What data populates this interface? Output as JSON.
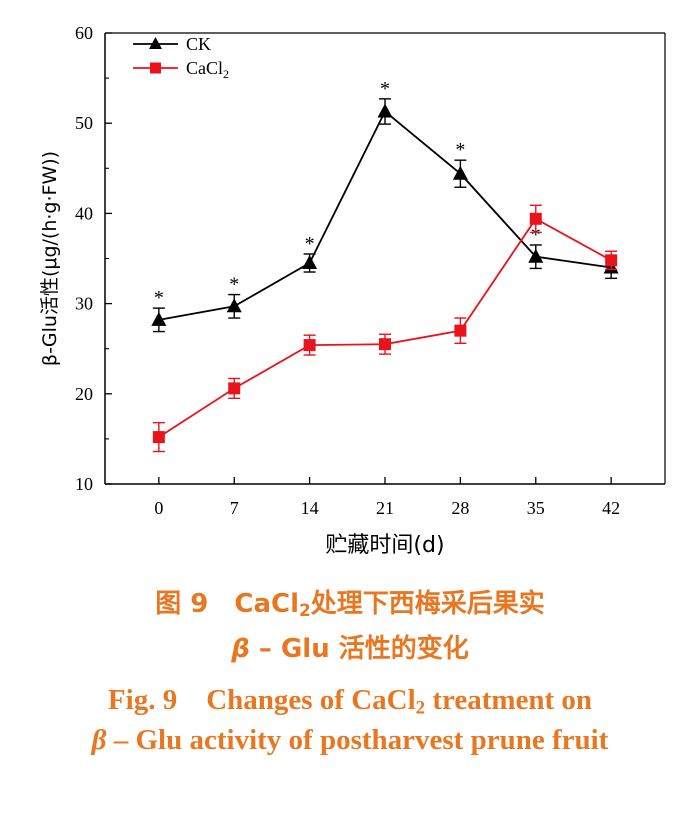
{
  "chart_data": {
    "type": "line",
    "x": [
      0,
      7,
      14,
      21,
      28,
      35,
      42
    ],
    "xlabel": "贮藏时间(d)",
    "ylabel": "β-Glu活性(μg/(h·g·FW))",
    "xlim": [
      -5,
      47
    ],
    "ylim": [
      10,
      60
    ],
    "yticks": [
      10,
      20,
      30,
      40,
      50,
      60
    ],
    "legend_position": "top-left",
    "significance_marker": "*",
    "series": [
      {
        "name": "CK",
        "color": "#000000",
        "marker": "triangle",
        "values": [
          28.2,
          29.7,
          34.5,
          51.3,
          44.4,
          35.2,
          34.0
        ],
        "errors": [
          1.3,
          1.3,
          1.0,
          1.4,
          1.5,
          1.3,
          1.2
        ],
        "significant": [
          true,
          true,
          true,
          true,
          true,
          true,
          false
        ]
      },
      {
        "name": "CaCl2",
        "name_main": "CaCl",
        "name_sub": "2",
        "color": "#e8131b",
        "marker": "square",
        "values": [
          15.2,
          20.6,
          25.4,
          25.5,
          27.0,
          39.4,
          34.8
        ],
        "errors": [
          1.6,
          1.1,
          1.1,
          1.1,
          1.4,
          1.5,
          1.0
        ],
        "significant": [
          false,
          false,
          false,
          false,
          false,
          false,
          false
        ]
      }
    ]
  },
  "caption": {
    "zh_line1_prefix": "图 9　CaCl",
    "zh_line1_sub": "2",
    "zh_line1_suffix": "处理下西梅采后果实",
    "zh_line2_beta": "β",
    "zh_line2_rest": " – Glu 活性的变化",
    "en_line1_prefix": "Fig. 9　Changes of CaCl",
    "en_line1_sub": "2",
    "en_line1_suffix": " treatment on",
    "en_line2_beta": "β",
    "en_line2_rest": " – Glu activity of postharvest prune fruit"
  },
  "colors": {
    "caption": "#e87722",
    "axis": "#000000"
  }
}
